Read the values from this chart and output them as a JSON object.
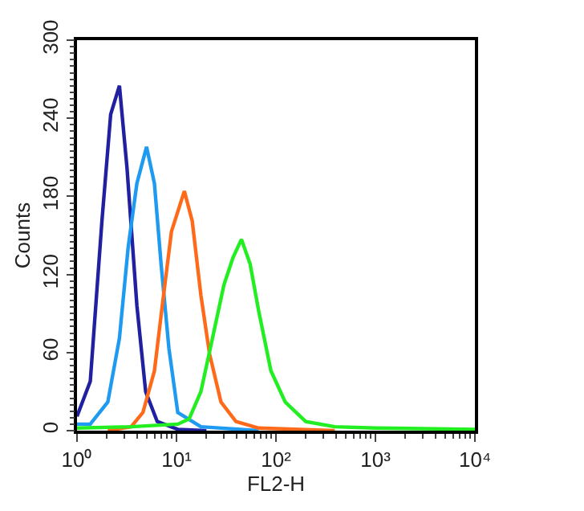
{
  "chart_data": {
    "type": "line",
    "xlabel": "FL2-H",
    "ylabel": "Counts",
    "log": "x",
    "marker": "none",
    "line_style": "solid",
    "xlim": [
      1,
      10000
    ],
    "xticks": [
      {
        "value": 1,
        "label": "10⁰"
      },
      {
        "value": 10,
        "label": "10¹"
      },
      {
        "value": 100,
        "label": "10²"
      },
      {
        "value": 1000,
        "label": "10³"
      },
      {
        "value": 10000,
        "label": "10⁴"
      }
    ],
    "ylim": [
      0,
      300
    ],
    "yticks": [
      0,
      60,
      120,
      180,
      240,
      300
    ],
    "series": [
      {
        "color": "#2020a0",
        "x": [
          1,
          1.36,
          1.78,
          2.18,
          2.67,
          3.18,
          4.0,
          4.9,
          6.4,
          10.3,
          20
        ],
        "values": [
          11,
          38,
          161,
          243,
          265,
          202,
          96,
          30,
          7,
          1,
          0
        ]
      },
      {
        "color": "#1e9bf0",
        "x": [
          1,
          1.36,
          2.04,
          2.67,
          3.27,
          4.0,
          5.0,
          6.0,
          7.0,
          8.4,
          10.3,
          17.6,
          67
        ],
        "values": [
          5,
          5,
          22,
          71,
          141,
          190,
          218,
          190,
          128,
          63,
          14,
          3,
          0
        ]
      },
      {
        "color": "#ff6a1a",
        "x": [
          2.04,
          3.5,
          4.6,
          6.0,
          7.3,
          8.9,
          12,
          14.4,
          17.6,
          21.5,
          28,
          39.6,
          67,
          390
        ],
        "values": [
          0,
          3,
          14,
          46,
          100,
          153,
          184,
          161,
          104,
          59,
          22,
          7,
          2,
          0
        ]
      },
      {
        "color": "#22ee22",
        "x": [
          1,
          3.5,
          10.3,
          13.4,
          17.6,
          23,
          30,
          37,
          45,
          55,
          67,
          89,
          124,
          199,
          390,
          1000,
          10000
        ],
        "values": [
          2,
          3,
          5,
          9,
          30,
          71,
          112,
          133,
          147,
          128,
          92,
          46,
          22,
          7,
          3,
          2,
          1
        ]
      }
    ]
  }
}
